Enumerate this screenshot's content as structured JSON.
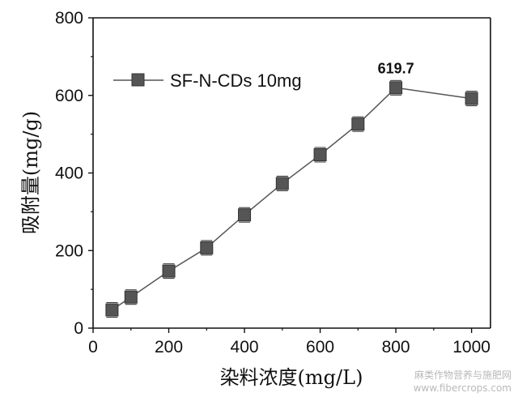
{
  "chart_data": {
    "type": "line",
    "title": "",
    "xlabel": "染料浓度(mg/L)",
    "ylabel": "吸附量(mg/g)",
    "xlim": [
      0,
      1050
    ],
    "ylim": [
      0,
      800
    ],
    "xticks": [
      0,
      200,
      400,
      600,
      800,
      1000
    ],
    "yticks": [
      0,
      200,
      400,
      600,
      800
    ],
    "grid": false,
    "legend_position": "top-left",
    "series": [
      {
        "name": "SF-N-CDs 10mg",
        "marker": "square",
        "color": "#555555",
        "x": [
          50,
          100,
          200,
          300,
          400,
          500,
          600,
          700,
          800,
          1000
        ],
        "y": [
          47,
          80,
          147,
          207,
          292,
          373,
          447,
          526,
          619.7,
          592
        ]
      }
    ],
    "annotations": [
      {
        "text": "619.7",
        "x": 800,
        "y": 619.7
      }
    ]
  },
  "watermark": {
    "line1": "麻类作物营养与施肥网",
    "line2": "www.fibercrops.com"
  }
}
